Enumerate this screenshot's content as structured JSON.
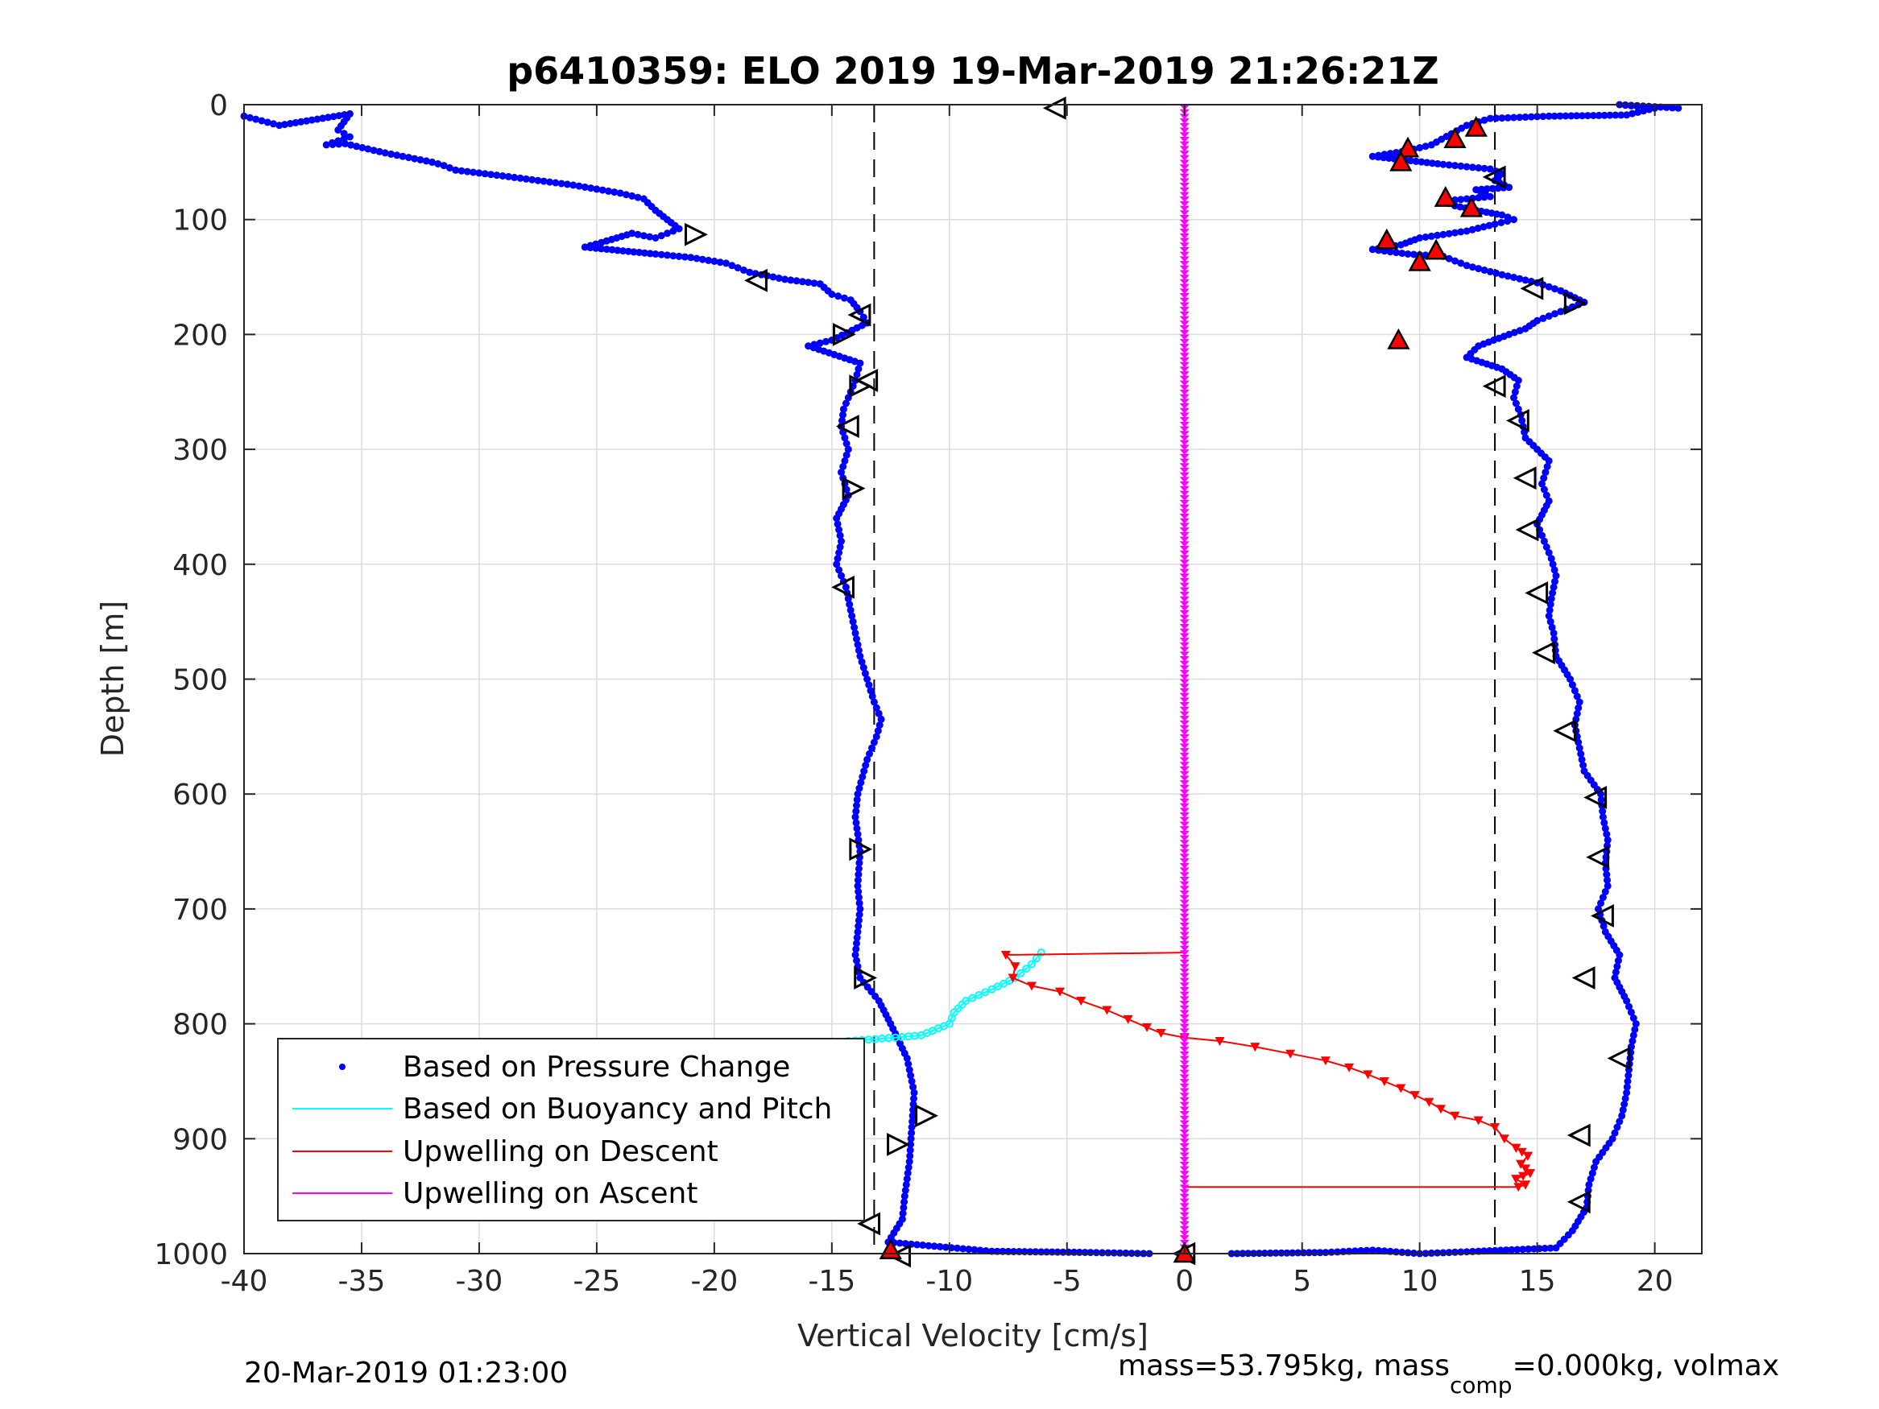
{
  "chart_data": {
    "type": "scatter",
    "title": "p6410359: ELO 2019 19-Mar-2019 21:26:21Z",
    "xlabel": "Vertical Velocity [cm/s]",
    "ylabel": "Depth [m]",
    "xlim": [
      -40,
      22
    ],
    "ylim": [
      1000,
      0
    ],
    "y_reversed": true,
    "grid": true,
    "legend_location": "lower-left",
    "x_ticks": [
      -40,
      -35,
      -30,
      -25,
      -20,
      -15,
      -10,
      -5,
      0,
      5,
      10,
      15,
      20
    ],
    "x_tick_labels": [
      "-40",
      "-35",
      "-30",
      "-25",
      "-20",
      "-15",
      "-10",
      "-5",
      "0",
      "5",
      "10",
      "15",
      "20"
    ],
    "y_ticks": [
      0,
      100,
      200,
      300,
      400,
      500,
      600,
      700,
      800,
      900,
      1000
    ],
    "y_tick_labels": [
      "0",
      "100",
      "200",
      "300",
      "400",
      "500",
      "600",
      "700",
      "800",
      "900",
      "1000"
    ],
    "reference_lines": [
      {
        "x": -13.2,
        "style": "dashed",
        "color": "#000000"
      },
      {
        "x": 13.2,
        "style": "dashed",
        "color": "#000000"
      }
    ],
    "colors": {
      "pressure": "#0000ff",
      "buoyancy": "#00ffff",
      "descent": "#ff0000",
      "ascent": "#ff00ff",
      "grid": "#dcdcdc"
    },
    "series": [
      {
        "name": "Based on Pressure Change",
        "kind": "points",
        "descent_profile": [
          [
            -40,
            10
          ],
          [
            -38.5,
            18
          ],
          [
            -35.5,
            8
          ],
          [
            -36,
            22
          ],
          [
            -35.5,
            28
          ],
          [
            -36.5,
            35
          ],
          [
            -35.7,
            34
          ],
          [
            -34,
            42
          ],
          [
            -33,
            46
          ],
          [
            -32,
            50
          ],
          [
            -31.5,
            53
          ],
          [
            -31,
            57
          ],
          [
            -29,
            62
          ],
          [
            -27.5,
            66
          ],
          [
            -26,
            70
          ],
          [
            -24,
            77
          ],
          [
            -23,
            82
          ],
          [
            -22.5,
            92
          ],
          [
            -22,
            100
          ],
          [
            -21.5,
            108
          ],
          [
            -22.5,
            116
          ],
          [
            -23.5,
            112
          ],
          [
            -24.8,
            120
          ],
          [
            -25.5,
            124
          ],
          [
            -22.5,
            130
          ],
          [
            -21,
            133
          ],
          [
            -19.5,
            138
          ],
          [
            -18.5,
            146
          ],
          [
            -17,
            152
          ],
          [
            -15.5,
            156
          ],
          [
            -15,
            165
          ],
          [
            -14.2,
            170
          ],
          [
            -13.8,
            180
          ],
          [
            -13.5,
            190
          ],
          [
            -15,
            205
          ],
          [
            -16,
            210
          ],
          [
            -13.8,
            225
          ],
          [
            -14,
            240
          ],
          [
            -14.2,
            250
          ],
          [
            -14.5,
            265
          ],
          [
            -14.6,
            280
          ],
          [
            -14.3,
            300
          ],
          [
            -14.6,
            320
          ],
          [
            -14.3,
            340
          ],
          [
            -14.8,
            360
          ],
          [
            -14.6,
            380
          ],
          [
            -14.8,
            400
          ],
          [
            -14.4,
            420
          ],
          [
            -14.2,
            440
          ],
          [
            -14,
            460
          ],
          [
            -13.8,
            480
          ],
          [
            -13.5,
            500
          ],
          [
            -13.2,
            520
          ],
          [
            -12.9,
            535
          ],
          [
            -13.1,
            550
          ],
          [
            -13.5,
            570
          ],
          [
            -13.9,
            600
          ],
          [
            -14,
            620
          ],
          [
            -13.8,
            650
          ],
          [
            -13.9,
            680
          ],
          [
            -13.8,
            700
          ],
          [
            -13.9,
            720
          ],
          [
            -14,
            740
          ],
          [
            -13.8,
            760
          ],
          [
            -13,
            780
          ],
          [
            -12.5,
            800
          ],
          [
            -11.8,
            830
          ],
          [
            -11.5,
            860
          ],
          [
            -11.6,
            890
          ],
          [
            -11.7,
            920
          ],
          [
            -11.9,
            950
          ],
          [
            -12,
            970
          ],
          [
            -12.6,
            990
          ],
          [
            -8.2,
            998
          ],
          [
            -4,
            999
          ],
          [
            -1.5,
            1000
          ]
        ],
        "ascent_profile": [
          [
            21,
            3
          ],
          [
            18.5,
            0
          ],
          [
            20,
            3
          ],
          [
            18.8,
            9
          ],
          [
            15.5,
            10
          ],
          [
            13,
            12
          ],
          [
            12,
            18
          ],
          [
            10.5,
            35
          ],
          [
            9.5,
            40
          ],
          [
            8,
            45
          ],
          [
            11,
            52
          ],
          [
            13,
            56
          ],
          [
            13.5,
            60
          ],
          [
            13.2,
            66
          ],
          [
            13.8,
            72
          ],
          [
            12.4,
            74
          ],
          [
            13,
            80
          ],
          [
            11,
            84
          ],
          [
            11.5,
            88
          ],
          [
            12.4,
            92
          ],
          [
            13.5,
            96
          ],
          [
            14,
            100
          ],
          [
            13.2,
            104
          ],
          [
            12,
            110
          ],
          [
            10,
            116
          ],
          [
            9.2,
            122
          ],
          [
            8,
            126
          ],
          [
            9.5,
            130
          ],
          [
            11,
            132
          ],
          [
            12,
            140
          ],
          [
            13.5,
            148
          ],
          [
            15,
            155
          ],
          [
            16,
            162
          ],
          [
            17,
            172
          ],
          [
            16,
            180
          ],
          [
            15,
            188
          ],
          [
            14.5,
            195
          ],
          [
            13.8,
            200
          ],
          [
            12.5,
            210
          ],
          [
            12,
            220
          ],
          [
            13.5,
            230
          ],
          [
            14.2,
            240
          ],
          [
            14,
            255
          ],
          [
            14.3,
            270
          ],
          [
            14.5,
            290
          ],
          [
            15,
            300
          ],
          [
            15.5,
            310
          ],
          [
            15.2,
            330
          ],
          [
            15.5,
            345
          ],
          [
            15,
            365
          ],
          [
            15.3,
            380
          ],
          [
            15.6,
            395
          ],
          [
            15.8,
            410
          ],
          [
            15.6,
            430
          ],
          [
            15.5,
            445
          ],
          [
            15.7,
            460
          ],
          [
            15.8,
            480
          ],
          [
            16.4,
            500
          ],
          [
            16.8,
            520
          ],
          [
            16.6,
            540
          ],
          [
            16.8,
            560
          ],
          [
            17,
            580
          ],
          [
            17.7,
            600
          ],
          [
            17.8,
            620
          ],
          [
            18,
            640
          ],
          [
            17.9,
            660
          ],
          [
            18,
            680
          ],
          [
            17.6,
            700
          ],
          [
            17.9,
            720
          ],
          [
            18.5,
            740
          ],
          [
            18.3,
            760
          ],
          [
            18.8,
            780
          ],
          [
            19.2,
            800
          ],
          [
            19,
            820
          ],
          [
            18.9,
            840
          ],
          [
            18.8,
            860
          ],
          [
            18.6,
            880
          ],
          [
            18.2,
            900
          ],
          [
            17.5,
            920
          ],
          [
            17.2,
            940
          ],
          [
            17.1,
            960
          ],
          [
            16.5,
            980
          ],
          [
            15.8,
            995
          ],
          [
            12.5,
            998
          ],
          [
            10,
            1000
          ],
          [
            8,
            997
          ],
          [
            6,
            999
          ],
          [
            2,
            1000
          ]
        ]
      },
      {
        "name": "Based on Buoyancy and Pitch",
        "kind": "line",
        "points": [
          [
            -6.1,
            738
          ],
          [
            -6.5,
            748
          ],
          [
            -7.2,
            760
          ],
          [
            -8.2,
            770
          ],
          [
            -9.3,
            780
          ],
          [
            -9.8,
            790
          ],
          [
            -10,
            800
          ],
          [
            -11.2,
            810
          ],
          [
            -12.3,
            812
          ],
          [
            -14.3,
            815
          ],
          [
            -15.4,
            825
          ],
          [
            -16.2,
            835
          ],
          [
            -17.4,
            848
          ],
          [
            -18.6,
            860
          ],
          [
            -19.5,
            870
          ],
          [
            -21,
            880
          ],
          [
            -22.5,
            888
          ],
          [
            -23.8,
            896
          ],
          [
            -24.8,
            904
          ],
          [
            -25.5,
            912
          ],
          [
            -26,
            920
          ],
          [
            -26.1,
            930
          ],
          [
            -26.2,
            940
          ]
        ]
      },
      {
        "name": "Upwelling on Descent",
        "kind": "line-markers",
        "points": [
          [
            0,
            738
          ],
          [
            -7.6,
            740
          ],
          [
            -7.2,
            750
          ],
          [
            -7.3,
            760
          ],
          [
            -6.5,
            767
          ],
          [
            -5.3,
            772
          ],
          [
            -4.4,
            780
          ],
          [
            -3.3,
            788
          ],
          [
            -2.4,
            796
          ],
          [
            -1.6,
            803
          ],
          [
            -1.0,
            808
          ],
          [
            0,
            812
          ],
          [
            1.5,
            815
          ],
          [
            3.0,
            820
          ],
          [
            4.5,
            826
          ],
          [
            6.0,
            832
          ],
          [
            7.0,
            838
          ],
          [
            7.8,
            844
          ],
          [
            8.5,
            850
          ],
          [
            9.2,
            856
          ],
          [
            9.8,
            862
          ],
          [
            10.4,
            868
          ],
          [
            10.9,
            874
          ],
          [
            11.5,
            880
          ],
          [
            12.5,
            884
          ],
          [
            13.2,
            890
          ],
          [
            13.6,
            900
          ],
          [
            14.1,
            908
          ],
          [
            14.6,
            915
          ],
          [
            14.3,
            922
          ],
          [
            14.7,
            930
          ],
          [
            14.1,
            935
          ],
          [
            14.5,
            940
          ],
          [
            14.2,
            942
          ],
          [
            0,
            942
          ]
        ]
      },
      {
        "name": "Upwelling on Ascent",
        "kind": "line",
        "points": [
          [
            0,
            0
          ],
          [
            0,
            1000
          ]
        ]
      }
    ],
    "markers": {
      "open_triangles_left": [
        [
          -5.5,
          3
        ],
        [
          -18.2,
          153
        ],
        [
          -13.8,
          183
        ],
        [
          -13.5,
          240
        ],
        [
          -14.3,
          280
        ],
        [
          -14.5,
          420
        ],
        [
          -13.4,
          974
        ],
        [
          -12.1,
          1002
        ],
        [
          13.2,
          63
        ],
        [
          14.8,
          160
        ],
        [
          13.2,
          245
        ],
        [
          14.2,
          275
        ],
        [
          14.5,
          325
        ],
        [
          14.6,
          370
        ],
        [
          15.0,
          425
        ],
        [
          15.3,
          477
        ],
        [
          16.2,
          545
        ],
        [
          17.5,
          603
        ],
        [
          17.6,
          655
        ],
        [
          17.8,
          706
        ],
        [
          17.0,
          760
        ],
        [
          18.5,
          830
        ],
        [
          16.8,
          897
        ],
        [
          16.8,
          955
        ],
        [
          0,
          1000
        ]
      ],
      "open_triangles_right": [
        [
          -20.8,
          113
        ],
        [
          -14.5,
          200
        ],
        [
          -13.8,
          245
        ],
        [
          -14.1,
          334
        ],
        [
          -13.8,
          648
        ],
        [
          -13.6,
          760
        ],
        [
          -11.0,
          880
        ],
        [
          -12.2,
          905
        ],
        [
          16.6,
          173
        ]
      ],
      "red_triangles": [
        [
          12.4,
          20
        ],
        [
          11.5,
          30
        ],
        [
          9.5,
          38
        ],
        [
          9.2,
          50
        ],
        [
          11.1,
          81
        ],
        [
          12.2,
          90
        ],
        [
          8.6,
          118
        ],
        [
          10.7,
          127
        ],
        [
          10.0,
          137
        ],
        [
          9.1,
          205
        ],
        [
          -12.5,
          997
        ],
        [
          0,
          1000
        ]
      ]
    },
    "legend": [
      {
        "label": "Based on Pressure Change",
        "style": "dot",
        "color": "#0000ff"
      },
      {
        "label": "Based on Buoyancy and Pitch",
        "style": "line",
        "color": "#00ffff"
      },
      {
        "label": "Upwelling on Descent",
        "style": "line",
        "color": "#ff0000"
      },
      {
        "label": "Upwelling on Ascent",
        "style": "line",
        "color": "#ff00ff"
      }
    ]
  },
  "footer": {
    "left_text": "20-Mar-2019 01:23:00",
    "right_text_prefix": "mass=53.795kg, mass",
    "right_text_sub": "comp",
    "right_text_suffix": "=0.000kg, volmax"
  }
}
